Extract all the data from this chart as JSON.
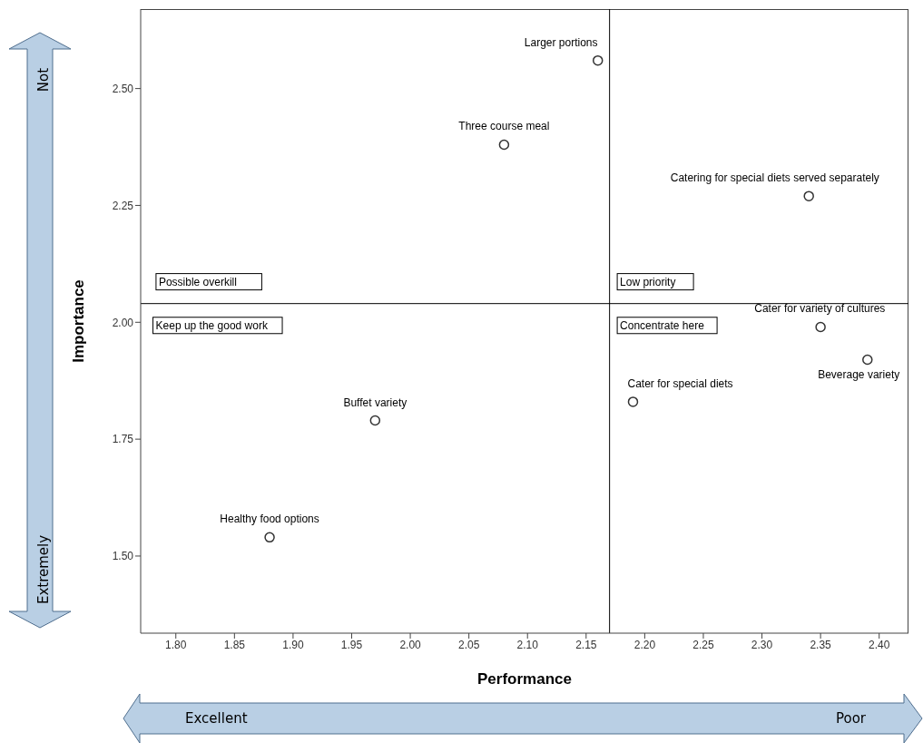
{
  "chart_data": {
    "type": "scatter",
    "xlabel": "Performance",
    "ylabel": "Importance",
    "x": [
      2.16,
      2.08,
      2.34,
      2.35,
      2.39,
      2.19,
      1.97,
      1.88
    ],
    "values": [
      2.56,
      2.38,
      2.27,
      1.99,
      1.92,
      1.83,
      1.79,
      1.54
    ],
    "color": "#333333",
    "marker": "circle",
    "grid": false,
    "legend": false,
    "xlim": [
      1.77,
      2.425
    ],
    "xticks": [
      {
        "value": 1.8,
        "label": "1.80"
      },
      {
        "value": 1.85,
        "label": "1.85"
      },
      {
        "value": 1.9,
        "label": "1.90"
      },
      {
        "value": 1.95,
        "label": "1.95"
      },
      {
        "value": 2.0,
        "label": "2.00"
      },
      {
        "value": 2.05,
        "label": "2.05"
      },
      {
        "value": 2.1,
        "label": "2.10"
      },
      {
        "value": 2.15,
        "label": "2.15"
      },
      {
        "value": 2.2,
        "label": "2.20"
      },
      {
        "value": 2.25,
        "label": "2.25"
      },
      {
        "value": 2.3,
        "label": "2.30"
      },
      {
        "value": 2.35,
        "label": "2.35"
      },
      {
        "value": 2.4,
        "label": "2.40"
      }
    ],
    "ylim": [
      1.335,
      2.67
    ],
    "yticks": [
      {
        "value": 1.5,
        "label": "1.50"
      },
      {
        "value": 1.75,
        "label": "1.75"
      },
      {
        "value": 2.0,
        "label": "2.00"
      },
      {
        "value": 2.25,
        "label": "2.25"
      },
      {
        "value": 2.5,
        "label": "2.50"
      }
    ],
    "ref_lines": [
      {
        "axis": "x",
        "value": 2.17,
        "color": "#000000"
      },
      {
        "axis": "y",
        "value": 2.04,
        "color": "#000000"
      }
    ],
    "annotations": [
      {
        "text": "Larger portions",
        "x": 2.16,
        "y": 2.56
      },
      {
        "text": "Three course meal",
        "x": 2.08,
        "y": 2.38
      },
      {
        "text": "Catering for special diets served separately",
        "x": 2.34,
        "y": 2.27
      },
      {
        "text": "Cater for variety of cultures",
        "x": 2.35,
        "y": 1.99
      },
      {
        "text": "Beverage variety",
        "x": 2.39,
        "y": 1.92
      },
      {
        "text": "Cater for special diets",
        "x": 2.19,
        "y": 1.83
      },
      {
        "text": "Buffet variety",
        "x": 1.97,
        "y": 1.79
      },
      {
        "text": "Healthy food options",
        "x": 1.88,
        "y": 1.54
      },
      "Possible overkill",
      "Low priority",
      "Keep up the good work",
      "Concentrate here",
      "Not",
      "Extremely",
      "Excellent",
      "Poor"
    ]
  }
}
